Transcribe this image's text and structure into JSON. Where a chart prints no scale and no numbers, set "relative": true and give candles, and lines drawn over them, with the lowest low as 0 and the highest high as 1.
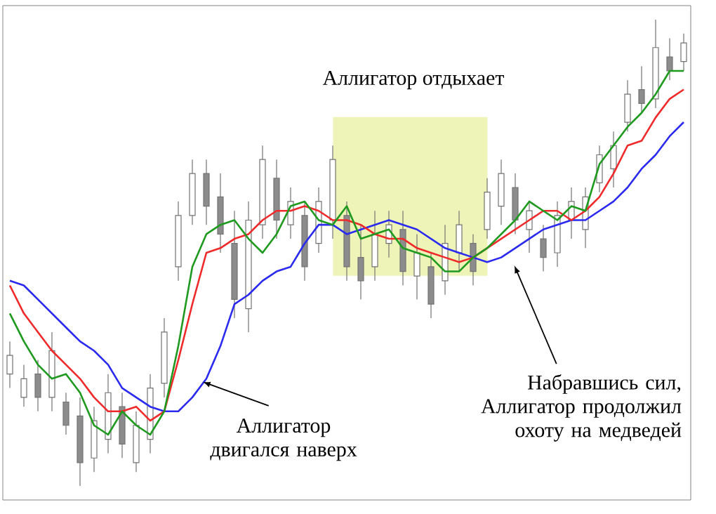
{
  "chart_data": {
    "type": "candlestick",
    "relative": true,
    "categories": [
      null,
      null,
      null,
      null,
      null,
      null,
      null,
      null,
      null,
      null,
      null,
      null,
      null,
      null,
      null,
      null,
      null,
      null,
      null,
      null,
      null,
      null,
      null,
      null,
      null,
      null,
      null,
      null,
      null,
      null,
      null,
      null,
      null,
      null,
      null,
      null,
      null,
      null,
      null,
      null,
      null,
      null,
      null,
      null,
      null,
      null,
      null,
      null,
      null
    ],
    "ohlc": [
      [
        0.24,
        0.31,
        0.21,
        0.28
      ],
      [
        0.19,
        0.26,
        0.17,
        0.23
      ],
      [
        0.24,
        0.27,
        0.16,
        0.19
      ],
      [
        0.19,
        0.33,
        0.16,
        0.29
      ],
      [
        0.18,
        0.2,
        0.11,
        0.13
      ],
      [
        0.15,
        0.19,
        0,
        0.05
      ],
      [
        0.06,
        0.17,
        0.03,
        0.14
      ],
      [
        0.1,
        0.24,
        0.07,
        0.2
      ],
      [
        0.17,
        0.2,
        0.06,
        0.09
      ],
      [
        0.05,
        0.16,
        0.03,
        0.13
      ],
      [
        0.1,
        0.24,
        0.07,
        0.21
      ],
      [
        0.22,
        0.36,
        0.19,
        0.33
      ],
      [
        0.47,
        0.61,
        0.44,
        0.58
      ],
      [
        0.58,
        0.7,
        0.56,
        0.67
      ],
      [
        0.67,
        0.7,
        0.56,
        0.6
      ],
      [
        0.62,
        0.67,
        0.5,
        0.54
      ],
      [
        0.52,
        0.59,
        0.36,
        0.4
      ],
      [
        0.38,
        0.61,
        0.33,
        0.57
      ],
      [
        0.56,
        0.73,
        0.53,
        0.7
      ],
      [
        0.66,
        0.7,
        0.53,
        0.57
      ],
      [
        0.56,
        0.64,
        0.53,
        0.61
      ],
      [
        0.58,
        0.61,
        0.44,
        0.47
      ],
      [
        0.52,
        0.64,
        0.5,
        0.61
      ],
      [
        0.57,
        0.73,
        0.53,
        0.7
      ],
      [
        0.58,
        0.61,
        0.44,
        0.47
      ],
      [
        0.49,
        0.56,
        0.4,
        0.44
      ],
      [
        0.47,
        0.59,
        0.44,
        0.54
      ],
      [
        0.52,
        0.59,
        0.49,
        0.56
      ],
      [
        0.55,
        0.59,
        0.43,
        0.46
      ],
      [
        0.45,
        0.54,
        0.4,
        0.5
      ],
      [
        0.47,
        0.5,
        0.36,
        0.39
      ],
      [
        0.44,
        0.56,
        0.41,
        0.52
      ],
      [
        0.5,
        0.59,
        0.46,
        0.56
      ],
      [
        0.52,
        0.54,
        0.43,
        0.46
      ],
      [
        0.55,
        0.66,
        0.53,
        0.63
      ],
      [
        0.6,
        0.7,
        0.56,
        0.67
      ],
      [
        0.64,
        0.67,
        0.54,
        0.57
      ],
      [
        0.55,
        0.61,
        0.5,
        0.59
      ],
      [
        0.53,
        0.56,
        0.46,
        0.49
      ],
      [
        0.5,
        0.61,
        0.47,
        0.58
      ],
      [
        0.57,
        0.64,
        0.53,
        0.61
      ],
      [
        0.55,
        0.64,
        0.51,
        0.62
      ],
      [
        0.65,
        0.73,
        0.63,
        0.71
      ],
      [
        0.68,
        0.76,
        0.64,
        0.73
      ],
      [
        0.78,
        0.87,
        0.76,
        0.84
      ],
      [
        0.85,
        0.9,
        0.8,
        0.82
      ],
      [
        0.83,
        1,
        0.81,
        0.94
      ],
      [
        0.92,
        0.96,
        0.87,
        0.89
      ],
      [
        0.91,
        0.97,
        0.89,
        0.95
      ]
    ],
    "series": [
      {
        "type": "line",
        "color": "#2a2af0",
        "values": [
          0.44,
          0.43,
          0.4,
          0.37,
          0.34,
          0.31,
          0.29,
          0.26,
          0.21,
          0.19,
          0.17,
          0.16,
          0.16,
          0.19,
          0.23,
          0.3,
          0.39,
          0.41,
          0.44,
          0.46,
          0.47,
          0.52,
          0.56,
          0.56,
          0.54,
          0.55,
          0.56,
          0.57,
          0.56,
          0.55,
          0.53,
          0.51,
          0.5,
          0.49,
          0.48,
          0.49,
          0.51,
          0.53,
          0.55,
          0.56,
          0.57,
          0.57,
          0.59,
          0.61,
          0.64,
          0.68,
          0.71,
          0.75,
          0.78
        ]
      },
      {
        "type": "line",
        "color": "#f02a2a",
        "values": [
          0.43,
          0.37,
          0.33,
          0.29,
          0.26,
          0.23,
          0.19,
          0.16,
          0.16,
          0.17,
          0.14,
          0.16,
          0.27,
          0.39,
          0.5,
          0.51,
          0.53,
          0.54,
          0.57,
          0.59,
          0.59,
          0.6,
          0.59,
          0.57,
          0.57,
          0.56,
          0.54,
          0.53,
          0.53,
          0.51,
          0.5,
          0.49,
          0.48,
          0.49,
          0.51,
          0.53,
          0.55,
          0.57,
          0.59,
          0.59,
          0.57,
          0.59,
          0.62,
          0.67,
          0.73,
          0.74,
          0.79,
          0.83,
          0.85
        ]
      },
      {
        "type": "line",
        "color": "#1e9a1e",
        "values": [
          0.37,
          0.31,
          0.26,
          0.23,
          0.24,
          0.2,
          0.13,
          0.11,
          0.16,
          0.13,
          0.11,
          0.16,
          0.3,
          0.47,
          0.54,
          0.56,
          0.57,
          0.53,
          0.5,
          0.54,
          0.6,
          0.61,
          0.57,
          0.56,
          0.6,
          0.53,
          0.54,
          0.55,
          0.51,
          0.5,
          0.49,
          0.46,
          0.46,
          0.49,
          0.51,
          0.54,
          0.57,
          0.61,
          0.59,
          0.57,
          0.6,
          0.59,
          0.69,
          0.73,
          0.77,
          0.8,
          0.84,
          0.89,
          0.89
        ]
      }
    ],
    "annotations": [
      "Аллигатор двигался наверх",
      "Набравшись сил, Аллигатор продолжил охоту на медведей",
      "Аллигатор отдыхает"
    ]
  }
}
